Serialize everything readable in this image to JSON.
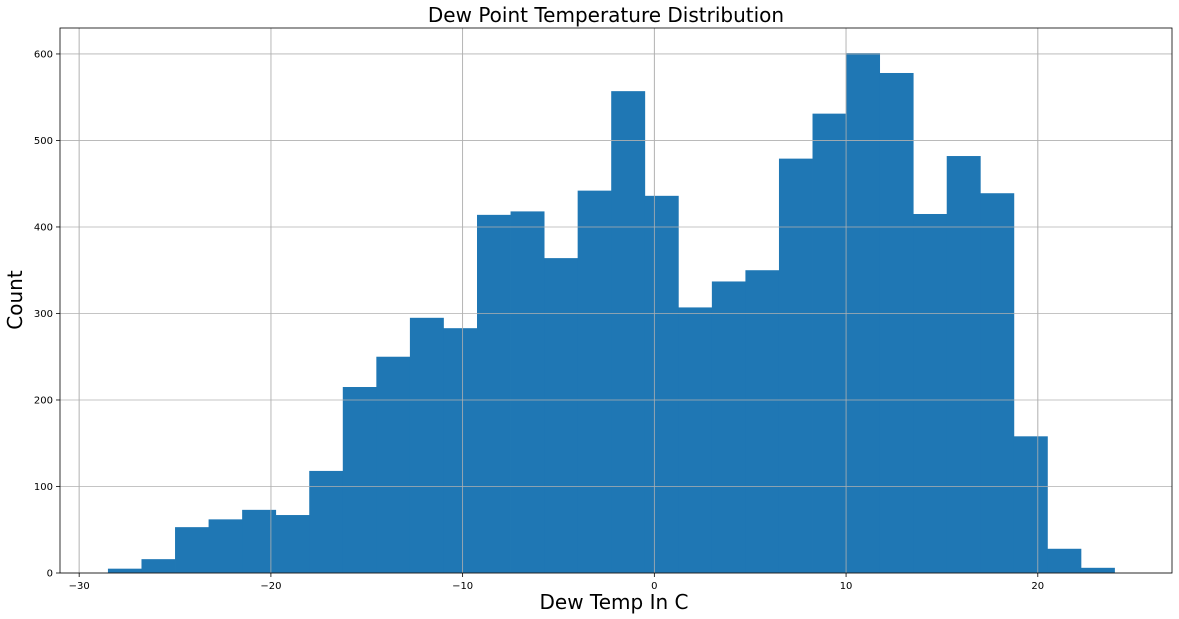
{
  "chart_data": {
    "type": "bar",
    "title": "Dew Point Temperature Distribution",
    "xlabel": "Dew Temp In C",
    "ylabel": "Count",
    "xlim": [
      -31,
      27
    ],
    "ylim": [
      0,
      630
    ],
    "grid": true,
    "bar_color": "#1f77b4",
    "grid_color": "#b0b0b0",
    "x_ticks": [
      -30,
      -20,
      -10,
      0,
      10,
      20
    ],
    "x_tick_labels": [
      "−30",
      "−20",
      "−10",
      "0",
      "10",
      "20"
    ],
    "y_ticks": [
      0,
      100,
      200,
      300,
      400,
      500,
      600
    ],
    "y_tick_labels": [
      "0",
      "100",
      "200",
      "300",
      "400",
      "500",
      "600"
    ],
    "bin_edges": [
      -28.5,
      -26.75,
      -25.0,
      -23.25,
      -21.5,
      -19.75,
      -18.0,
      -16.25,
      -14.5,
      -12.75,
      -11.0,
      -9.25,
      -7.5,
      -5.75,
      -4.0,
      -2.25,
      -0.5,
      1.25,
      3.0,
      4.75,
      6.5,
      8.25,
      10.0,
      11.75,
      13.5,
      15.25,
      17.0,
      18.75,
      20.5,
      22.25,
      24.0
    ],
    "values": [
      5,
      16,
      53,
      62,
      73,
      67,
      118,
      215,
      250,
      295,
      283,
      414,
      418,
      364,
      442,
      557,
      436,
      307,
      337,
      350,
      479,
      531,
      601,
      578,
      415,
      482,
      439,
      158,
      28,
      6
    ]
  }
}
